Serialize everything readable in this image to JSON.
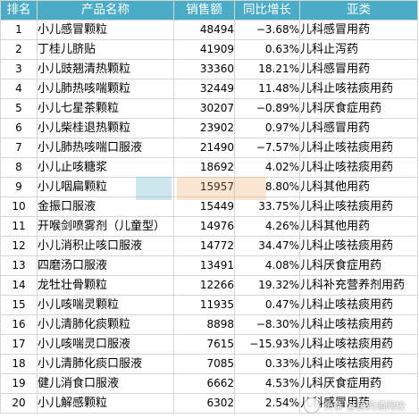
{
  "table": {
    "headers": [
      "排名",
      "产品名称",
      "销售额",
      "同比增长",
      "亚类"
    ],
    "rows": [
      [
        "1",
        "小儿感冒颗粒",
        "48494",
        "−3.68%",
        "儿科感冒用药"
      ],
      [
        "2",
        "丁桂儿脐贴",
        "41909",
        "0.63%",
        "儿科止泻药"
      ],
      [
        "3",
        "小儿豉翘清热颗粒",
        "33360",
        "18.21%",
        "儿科感冒用药"
      ],
      [
        "4",
        "小儿肺热咳喘颗粒",
        "32449",
        "11.48%",
        "儿科止咳祛痰用药"
      ],
      [
        "5",
        "小儿七星茶颗粒",
        "30207",
        "−0.89%",
        "儿科厌食症用药"
      ],
      [
        "6",
        "小儿柴桂退热颗粒",
        "23902",
        "0.97%",
        "儿科感冒用药"
      ],
      [
        "7",
        "小儿肺热咳喘口服液",
        "21490",
        "−7.57%",
        "儿科止咳祛痰用药"
      ],
      [
        "8",
        "小儿止咳糖浆",
        "18692",
        "4.02%",
        "儿科止咳祛痰用药"
      ],
      [
        "9",
        "小儿咽扁颗粒",
        "15957",
        "8.80%",
        "儿科其他用药"
      ],
      [
        "10",
        "金振口服液",
        "15449",
        "33.75%",
        "儿科止咳祛痰用药"
      ],
      [
        "11",
        "开喉剑喷雾剂（儿童型）",
        "14976",
        "4.26%",
        "儿科其他用药"
      ],
      [
        "12",
        "小儿消积止咳口服液",
        "14772",
        "34.47%",
        "儿科止咳祛痰用药"
      ],
      [
        "13",
        "四磨汤口服液",
        "13491",
        "4.08%",
        "儿科厌食症用药"
      ],
      [
        "14",
        "龙牡壮骨颗粒",
        "12266",
        "19.32%",
        "儿科补充营养剂用药"
      ],
      [
        "15",
        "小儿咳喘灵颗粒",
        "11935",
        "0.47%",
        "儿科止咳祛痰用药"
      ],
      [
        "16",
        "小儿清肺化痰颗粒",
        "8898",
        "−8.30%",
        "儿科止咳祛痰用药"
      ],
      [
        "17",
        "小儿咳喘灵口服液",
        "7615",
        "−15.93%",
        "儿科止咳祛痰用药"
      ],
      [
        "18",
        "小儿清肺化痰口服液",
        "7085",
        "0.33%",
        "儿科止咳祛痰用药"
      ],
      [
        "19",
        "健儿消食口服液",
        "6662",
        "4.53%",
        "儿科厌食症用药"
      ],
      [
        "20",
        "小儿解感颗粒",
        "6302",
        "2.54%",
        "儿科感冒用药"
      ]
    ]
  },
  "watermark": {
    "text": "头条 @医药通网校"
  },
  "colors": {
    "header_bg": "#4aacc6",
    "header_text": "#ffffff",
    "border": "#d6d6d6"
  }
}
